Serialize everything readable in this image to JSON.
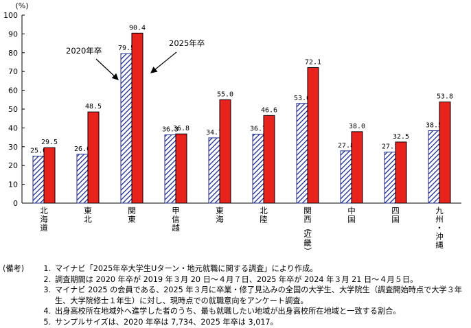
{
  "chart_data": {
    "type": "bar",
    "unit_label": "(%)",
    "ylim": [
      0,
      100
    ],
    "yticks": [
      0,
      10,
      20,
      30,
      40,
      50,
      60,
      70,
      80,
      90,
      100
    ],
    "categories": [
      "北海道",
      "東北",
      "関東",
      "甲信越",
      "東海",
      "北陸",
      "関西（近畿）",
      "中国",
      "四国",
      "九州・沖縄"
    ],
    "series": [
      {
        "name": "2020年卒",
        "pattern": "hatch",
        "color": "#1a2a8a",
        "values": [
          25.0,
          26.0,
          79.5,
          36.3,
          34.7,
          36.7,
          53.0,
          27.8,
          27.1,
          38.5
        ],
        "labels": [
          "25.0",
          "26.0",
          "79.5",
          "36.3",
          "34.7",
          "36.7",
          "53.0",
          "27.8",
          "27.1",
          "38.5"
        ]
      },
      {
        "name": "2025年卒",
        "pattern": "solid",
        "color": "#e8221c",
        "values": [
          29.5,
          48.5,
          90.4,
          36.8,
          55.0,
          46.6,
          72.1,
          38.0,
          32.5,
          53.8
        ],
        "labels": [
          "29.5",
          "48.5",
          "90.4",
          "36.8",
          "55.0",
          "46.6",
          "72.1",
          "38.0",
          "32.5",
          "53.8"
        ]
      }
    ],
    "annotations": [
      "2020年卒",
      "2025年卒"
    ],
    "grid": false
  },
  "notes": {
    "heading": "(備考)",
    "items": [
      {
        "num": "1.",
        "text": "マイナビ「2025年卒大学生Uターン・地元就職に関する調査」により作成。"
      },
      {
        "num": "2.",
        "text": "調査期間は 2020 年卒が 2019 年３月 20 日～４月７日、2025 年卒が 2024 年３月 21 日～４月５日。"
      },
      {
        "num": "3.",
        "text": "マイナビ 2025 の会員である、2025 年３月に卒業・修了見込みの全国の大学生、大学院生（調査開始時点で大学３年生、大学院修士１年生）に対し、現時点での就職意向をアンケート調査。"
      },
      {
        "num": "4.",
        "text": "出身高校所在地域外へ進学した者のうち、最も就職したい地域が出身高校所在地域と一致する割合。"
      },
      {
        "num": "5.",
        "text": "サンプルサイズは、2020 年卒は 7,734、2025 年卒は 3,017。"
      }
    ]
  }
}
